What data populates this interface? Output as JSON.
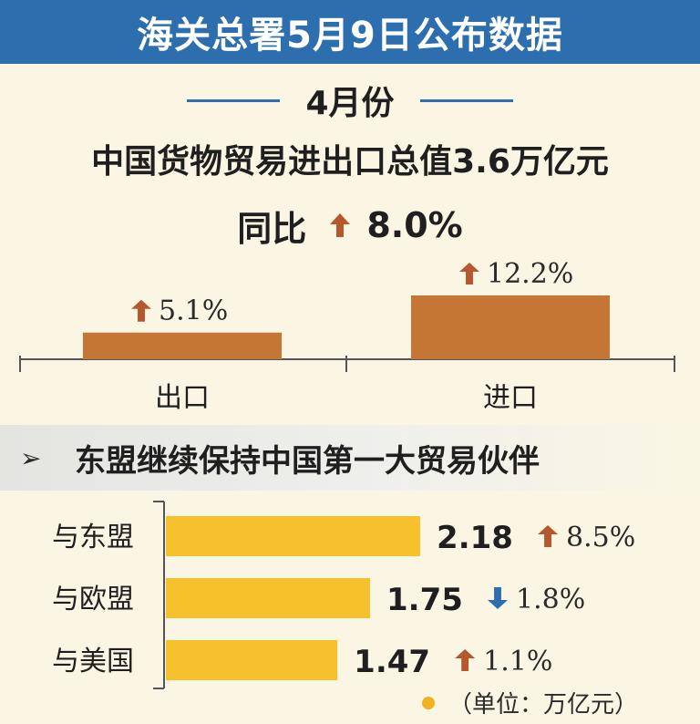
{
  "header": {
    "title": "海关总署5月9日公布数据"
  },
  "period": {
    "label": "4月份"
  },
  "summary": {
    "headline": "中国货物贸易进出口总值3.6万亿元",
    "yoy_label": "同比",
    "yoy_value": "8.0%",
    "yoy_direction": "up"
  },
  "section": {
    "marker": "➢",
    "title": "东盟继续保持中国第一大贸易伙伴"
  },
  "chart_data": [
    {
      "type": "bar",
      "categories": [
        "出口",
        "进口"
      ],
      "values": [
        5.1,
        12.2
      ],
      "value_labels": [
        "5.1%",
        "12.2%"
      ],
      "directions": [
        "up",
        "up"
      ],
      "title": "",
      "xlabel": "",
      "ylabel": ""
    },
    {
      "type": "bar",
      "orientation": "horizontal",
      "categories": [
        "与东盟",
        "与欧盟",
        "与美国"
      ],
      "values": [
        2.18,
        1.75,
        1.47
      ],
      "value_labels": [
        "2.18",
        "1.75",
        "1.47"
      ],
      "changes": [
        "8.5%",
        "1.8%",
        "1.1%"
      ],
      "directions": [
        "up",
        "down",
        "up"
      ],
      "legend": "（单位：万亿元）",
      "title": "",
      "xlabel": "",
      "ylabel": ""
    }
  ],
  "colors": {
    "header_bg": "#2d6fae",
    "page_bg": "#fbf6e4",
    "top_bar": "#c57634",
    "bottom_bar": "#f6c12d",
    "arrow_up": "#b5582e",
    "arrow_down": "#2d6fae",
    "legend_dot": "#f0b21e"
  }
}
